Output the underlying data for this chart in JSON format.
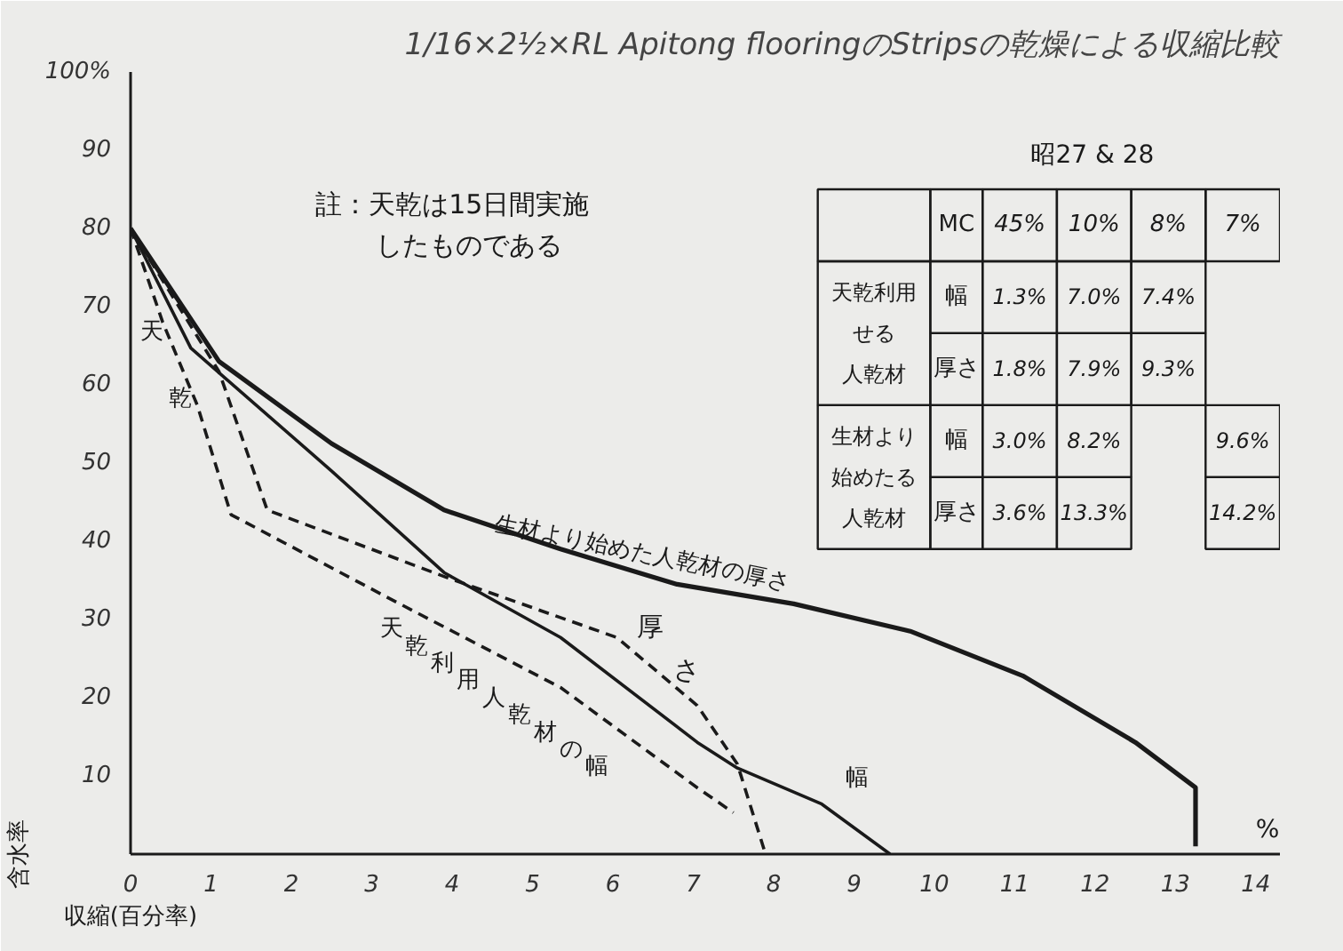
{
  "chart_data": [
    {
      "type": "line",
      "title": "1/16×2½×RL Apitong flooringのStripsの乾燥による収縮比較",
      "xlabel": "収縮(百分率)",
      "ylabel": "含水率",
      "xlim": [
        0,
        14.3
      ],
      "ylim": [
        0,
        100
      ],
      "xticks": [
        0,
        1,
        2,
        3,
        4,
        5,
        6,
        7,
        8,
        9,
        10,
        11,
        12,
        13,
        14
      ],
      "yticks": [
        10,
        20,
        30,
        40,
        50,
        60,
        70,
        80,
        90,
        {
          "value": 100,
          "label": "100%"
        }
      ],
      "annotations": [
        "註：天乾は15日間実施したものである",
        "%",
        "天乾"
      ],
      "series": [
        {
          "name": "生材より始めた人乾材の厚さ",
          "color": "#1a1a1a",
          "line_style": "solid",
          "x": [
            0,
            1.1,
            2.5,
            3.9,
            5.35,
            6.8,
            8.25,
            9.7,
            11.1,
            12.5,
            13.25,
            13.25
          ],
          "values": [
            80,
            63,
            52.5,
            44,
            39,
            34.5,
            32,
            28.5,
            22.8,
            14.3,
            8.5,
            1
          ]
        },
        {
          "name": "幅",
          "color": "#1a1a1a",
          "line_style": "solid",
          "x": [
            0,
            0.75,
            2.5,
            3.9,
            5.35,
            7.05,
            7.55,
            8.6,
            9.45
          ],
          "values": [
            80,
            64.7,
            49,
            36,
            27.7,
            14.3,
            11,
            6.4,
            0
          ]
        },
        {
          "name": "厚さ",
          "color": "#1a1a1a",
          "line_style": "dashed",
          "x": [
            0,
            1.1,
            1.7,
            3.9,
            6.05,
            7.05,
            7.55,
            7.9
          ],
          "values": [
            80,
            61.7,
            44,
            35.5,
            27.7,
            19,
            11.5,
            0
          ]
        },
        {
          "name": "天乾利用人乾材の幅",
          "color": "#1a1a1a",
          "line_style": "dashed",
          "x": [
            0,
            0.4,
            0.83,
            1.25,
            3.2,
            5.35,
            7.05,
            7.5
          ],
          "values": [
            80,
            68,
            57.4,
            43.4,
            32.8,
            21.3,
            8.5,
            5.3
          ]
        }
      ]
    },
    {
      "type": "other",
      "title": "昭27 & 28",
      "categories": [
        "MC",
        "45%",
        "10%",
        "8%",
        "7%"
      ],
      "y_categories": [
        "幅",
        "厚さ",
        "幅",
        "厚さ"
      ],
      "annotations": [
        "天乾利用せる人乾材",
        "生材より始めたる人乾材"
      ],
      "cell_labels": [
        [
          "1.3%",
          "7.0%",
          "7.4%",
          null
        ],
        [
          "1.8%",
          "7.9%",
          "9.3%",
          null
        ],
        [
          "3.0%",
          "8.2%",
          null,
          "9.6%"
        ],
        [
          "3.6%",
          "13.3%",
          null,
          "14.2%"
        ]
      ]
    }
  ]
}
